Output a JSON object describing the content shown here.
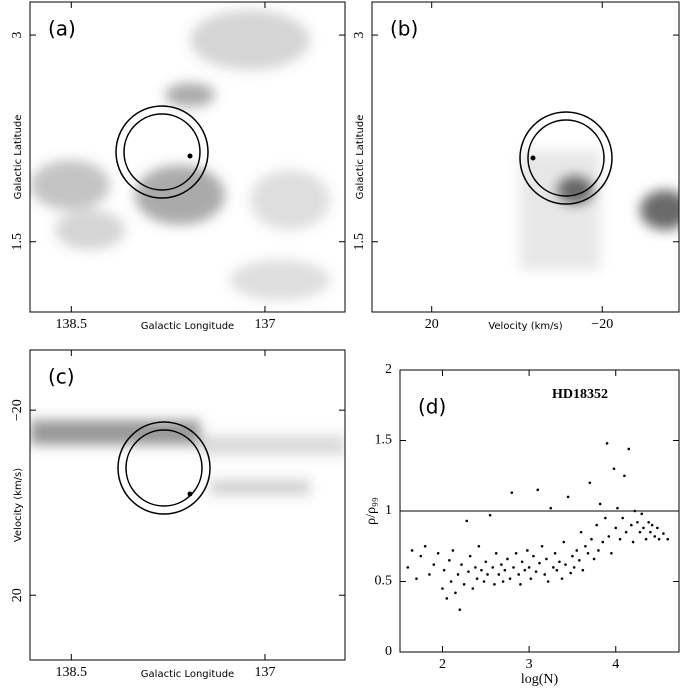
{
  "chart_data": [
    {
      "type": "image",
      "label": "(a)",
      "xlabel": "Galactic Longitude",
      "ylabel": "Galactic Latitude",
      "xlim": [
        138.82,
        136.38
      ],
      "ylim": [
        0.99,
        3.24
      ],
      "xticks": [
        138.5,
        137
      ],
      "yticks": [
        3,
        1.5
      ]
    },
    {
      "type": "image",
      "label": "(b)",
      "xlabel": "Velocity (km/s)",
      "ylabel": "Galactic Latitude",
      "xlim": [
        34,
        -38
      ],
      "ylim": [
        0.99,
        3.24
      ],
      "xticks": [
        20,
        {
          "value": -20,
          "label": "−20"
        }
      ],
      "yticks": [
        3,
        1.5
      ]
    },
    {
      "type": "image",
      "label": "(c)",
      "xlabel": "Galactic Longitude",
      "ylabel": "Velocity (km/s)",
      "xlim": [
        138.82,
        136.38
      ],
      "ylim": [
        34,
        -33
      ],
      "xticks": [
        138.5,
        137
      ],
      "yticks": [
        {
          "value": -20,
          "label": "−20"
        },
        20
      ]
    },
    {
      "type": "scatter",
      "label": "(d)",
      "annotation": "HD18352",
      "xlabel": "log(N)",
      "ylabel": "ρ/ρ₉₉",
      "xlim": [
        1.51,
        4.73
      ],
      "ylim": [
        0,
        2
      ],
      "xticks": [
        2,
        3,
        4
      ],
      "yticks": [
        0,
        0.5,
        1,
        1.5,
        2
      ],
      "reference_line": 1,
      "color": "#000000",
      "x": [
        1.6,
        1.65,
        1.7,
        1.75,
        1.8,
        1.85,
        1.9,
        1.95,
        2.0,
        2.02,
        2.05,
        2.08,
        2.1,
        2.12,
        2.15,
        2.18,
        2.2,
        2.22,
        2.25,
        2.28,
        2.3,
        2.32,
        2.35,
        2.38,
        2.4,
        2.42,
        2.45,
        2.48,
        2.5,
        2.52,
        2.55,
        2.58,
        2.6,
        2.62,
        2.65,
        2.68,
        2.7,
        2.72,
        2.75,
        2.78,
        2.8,
        2.82,
        2.85,
        2.88,
        2.9,
        2.92,
        2.95,
        2.98,
        3.0,
        3.02,
        3.05,
        3.08,
        3.1,
        3.12,
        3.15,
        3.18,
        3.2,
        3.22,
        3.25,
        3.28,
        3.3,
        3.32,
        3.35,
        3.38,
        3.4,
        3.42,
        3.45,
        3.48,
        3.5,
        3.52,
        3.55,
        3.58,
        3.6,
        3.62,
        3.65,
        3.68,
        3.7,
        3.72,
        3.75,
        3.78,
        3.8,
        3.82,
        3.85,
        3.88,
        3.9,
        3.92,
        3.95,
        3.98,
        4.0,
        4.02,
        4.05,
        4.08,
        4.1,
        4.12,
        4.15,
        4.18,
        4.2,
        4.22,
        4.25,
        4.28,
        4.3,
        4.32,
        4.35,
        4.38,
        4.4,
        4.42,
        4.45,
        4.48,
        4.5,
        4.55,
        4.6
      ],
      "values": [
        0.6,
        0.72,
        0.52,
        0.68,
        0.75,
        0.55,
        0.62,
        0.7,
        0.45,
        0.58,
        0.38,
        0.65,
        0.5,
        0.72,
        0.42,
        0.55,
        0.3,
        0.62,
        0.48,
        0.93,
        0.57,
        0.68,
        0.45,
        0.6,
        0.52,
        0.75,
        0.58,
        0.5,
        0.64,
        0.55,
        0.97,
        0.6,
        0.48,
        0.7,
        0.55,
        0.62,
        0.5,
        0.58,
        0.66,
        0.52,
        1.13,
        0.6,
        0.7,
        0.55,
        0.48,
        0.64,
        0.58,
        0.72,
        0.6,
        0.52,
        0.68,
        0.57,
        1.15,
        0.63,
        0.75,
        0.55,
        0.66,
        0.5,
        1.02,
        0.6,
        0.7,
        0.58,
        0.64,
        0.52,
        0.78,
        0.62,
        1.1,
        0.56,
        0.68,
        0.6,
        0.72,
        0.65,
        0.85,
        0.58,
        0.75,
        0.7,
        1.2,
        0.8,
        0.66,
        0.9,
        0.72,
        1.05,
        0.78,
        0.95,
        1.48,
        0.82,
        0.7,
        1.3,
        0.88,
        1.02,
        0.8,
        0.95,
        1.25,
        0.85,
        1.44,
        0.9,
        0.78,
        1.0,
        0.92,
        0.85,
        0.98,
        0.88,
        0.8,
        0.92,
        0.85,
        0.9,
        0.82,
        0.88,
        0.8,
        0.84,
        0.8
      ]
    }
  ]
}
